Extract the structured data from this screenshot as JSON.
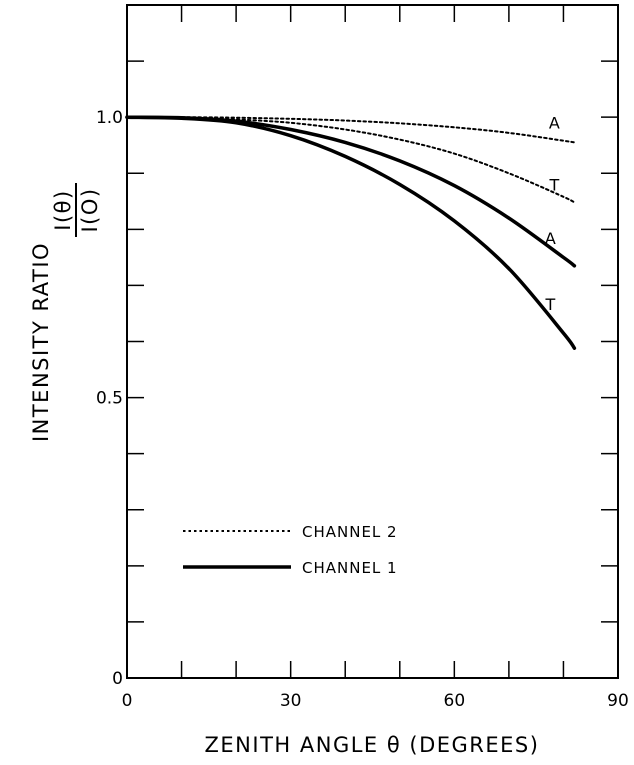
{
  "chart_data": {
    "type": "line",
    "title": "",
    "xlabel": "ZENITH ANGLE θ (DEGREES)",
    "ylabel": "INTENSITY RATIO",
    "ylabel_fraction": {
      "numerator": "I(θ)",
      "denominator": "I(O)"
    },
    "xlim": [
      0,
      90
    ],
    "ylim": [
      0,
      1.2
    ],
    "x_ticks": [
      0,
      30,
      60,
      90
    ],
    "x_tick_labels": [
      "0",
      "30",
      "60",
      "90"
    ],
    "y_ticks": [
      0,
      0.5,
      1.0
    ],
    "y_tick_labels": [
      "0",
      "0.5",
      "1.0"
    ],
    "x_minor_step": 10,
    "y_minor_step": 0.1,
    "grid": false,
    "legend_position": "lower-left",
    "legend": [
      {
        "label": "CHANNEL 2",
        "style": "dotted"
      },
      {
        "label": "CHANNEL 1",
        "style": "solid"
      }
    ],
    "series": [
      {
        "channel": "CHANNEL 2",
        "curve_label": "A",
        "style": "dotted",
        "x": [
          0,
          10,
          20,
          30,
          40,
          50,
          60,
          70,
          80,
          82
        ],
        "y": [
          1.0,
          1.0,
          0.999,
          0.997,
          0.994,
          0.989,
          0.982,
          0.972,
          0.958,
          0.955
        ]
      },
      {
        "channel": "CHANNEL 2",
        "curve_label": "T",
        "style": "dotted",
        "x": [
          0,
          10,
          20,
          30,
          40,
          50,
          60,
          70,
          80,
          82
        ],
        "y": [
          1.0,
          0.999,
          0.996,
          0.99,
          0.978,
          0.96,
          0.935,
          0.9,
          0.858,
          0.848
        ]
      },
      {
        "channel": "CHANNEL 1",
        "curve_label": "A",
        "style": "solid",
        "x": [
          0,
          10,
          20,
          30,
          40,
          50,
          60,
          70,
          80,
          82
        ],
        "y": [
          1.0,
          0.999,
          0.993,
          0.978,
          0.955,
          0.922,
          0.878,
          0.82,
          0.75,
          0.735
        ]
      },
      {
        "channel": "CHANNEL 1",
        "curve_label": "T",
        "style": "solid",
        "x": [
          0,
          10,
          20,
          30,
          40,
          50,
          60,
          70,
          80,
          82
        ],
        "y": [
          1.0,
          0.998,
          0.99,
          0.967,
          0.93,
          0.88,
          0.815,
          0.73,
          0.615,
          0.588
        ]
      }
    ]
  }
}
